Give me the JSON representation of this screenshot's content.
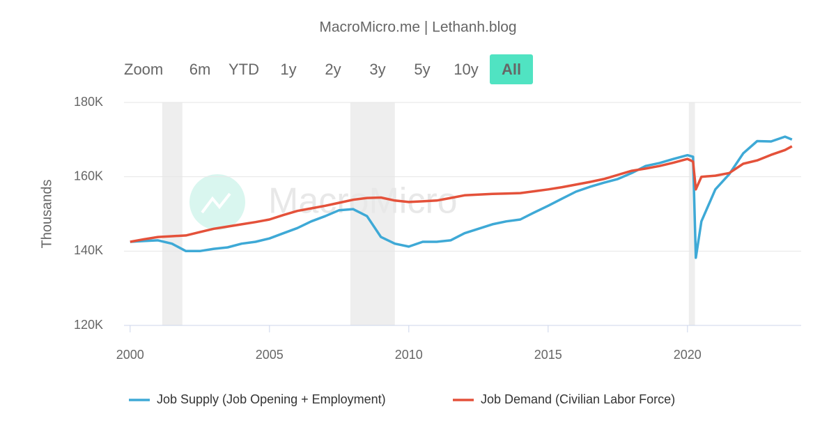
{
  "chart_data": {
    "type": "line",
    "title": "MacroMicro.me | Lethanh.blog",
    "range_selector": {
      "label": "Zoom",
      "buttons": [
        "6m",
        "YTD",
        "1y",
        "2y",
        "3y",
        "5y",
        "10y",
        "All"
      ],
      "selected": "All"
    },
    "watermark": "MacroMicro",
    "y_label": "Thousands",
    "x": [
      2000,
      2000.5,
      2001,
      2001.5,
      2002,
      2002.5,
      2003,
      2003.5,
      2004,
      2004.5,
      2005,
      2005.5,
      2006,
      2006.5,
      2007,
      2007.5,
      2008,
      2008.5,
      2009,
      2009.5,
      2010,
      2010.5,
      2011,
      2011.5,
      2012,
      2012.5,
      2013,
      2013.5,
      2014,
      2014.5,
      2015,
      2015.5,
      2016,
      2016.5,
      2017,
      2017.5,
      2018,
      2018.5,
      2019,
      2019.5,
      2020,
      2020.2,
      2020.3,
      2020.5,
      2021,
      2021.5,
      2022,
      2022.5,
      2023,
      2023.5,
      2023.75
    ],
    "series": [
      {
        "name": "Job Supply (Job Opening + Employment)",
        "color": "#3ea9d6",
        "values": [
          142500,
          142700,
          142900,
          142000,
          140000,
          140000,
          140600,
          141000,
          142000,
          142500,
          143400,
          144800,
          146200,
          148000,
          149400,
          151000,
          151300,
          149400,
          143800,
          142000,
          141200,
          142500,
          142500,
          142900,
          144800,
          146000,
          147200,
          148000,
          148500,
          150400,
          152200,
          154100,
          156000,
          157300,
          158400,
          159400,
          161000,
          162900,
          163700,
          164800,
          165800,
          165400,
          138200,
          148000,
          156600,
          160700,
          166300,
          169600,
          169500,
          170800,
          170000
        ]
      },
      {
        "name": "Job Demand (Civilian Labor Force)",
        "color": "#e4513a",
        "values": [
          142500,
          143200,
          143800,
          144000,
          144200,
          145100,
          146000,
          146600,
          147200,
          147800,
          148500,
          149700,
          150800,
          151500,
          152200,
          153000,
          153800,
          154300,
          154400,
          153600,
          153200,
          153400,
          153600,
          154300,
          155000,
          155200,
          155400,
          155500,
          155600,
          156100,
          156600,
          157200,
          157900,
          158600,
          159400,
          160500,
          161600,
          162200,
          162900,
          163800,
          164800,
          164100,
          156600,
          160000,
          160300,
          161000,
          163500,
          164400,
          165900,
          167200,
          168200
        ]
      }
    ],
    "shaded_ranges": [
      [
        2001.15,
        2001.875
      ],
      [
        2007.9,
        2009.5
      ],
      [
        2020.05,
        2020.27
      ]
    ],
    "xlim": [
      1999.78,
      2024.08
    ],
    "xticks": [
      2000,
      2005,
      2010,
      2015,
      2020
    ],
    "ylim": [
      120000,
      180000
    ],
    "yticks": [
      {
        "value": 120000,
        "label": "120K"
      },
      {
        "value": 140000,
        "label": "140K"
      },
      {
        "value": 160000,
        "label": "160K"
      },
      {
        "value": 180000,
        "label": "180K"
      }
    ],
    "grid": true,
    "legend": "bottom"
  }
}
